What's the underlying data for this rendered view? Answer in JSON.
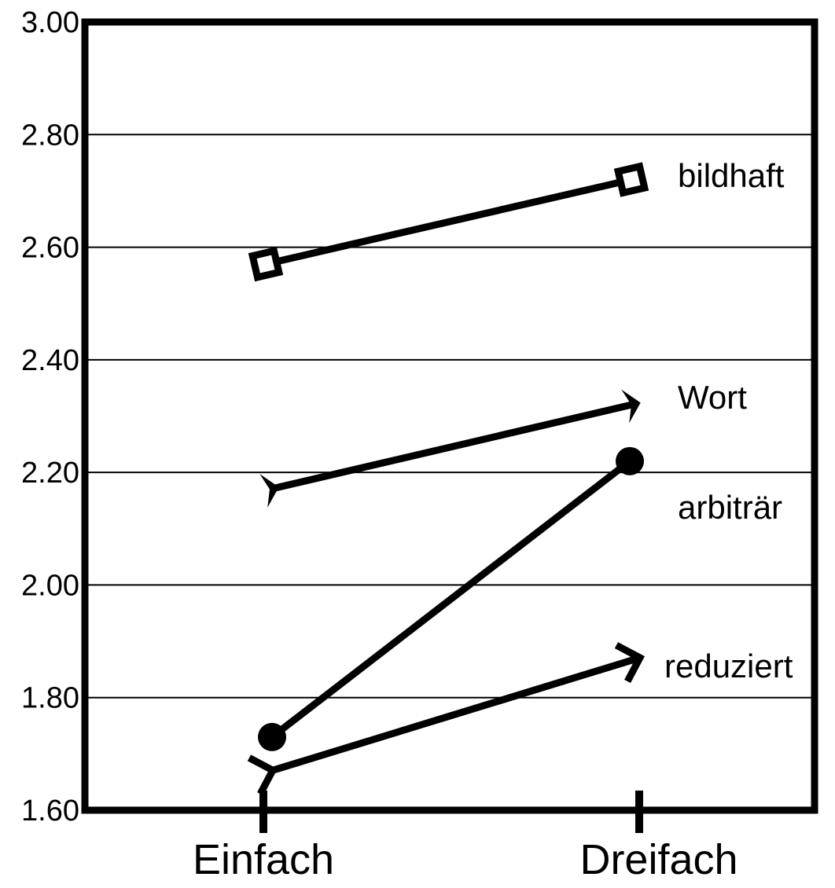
{
  "chart_data": {
    "type": "line",
    "title": "",
    "xlabel": "",
    "ylabel": "",
    "categories": [
      "Einfach",
      "Dreifach"
    ],
    "ylim": [
      1.6,
      3.0
    ],
    "yticks": [
      "1.60",
      "1.80",
      "2.00",
      "2.20",
      "2.40",
      "2.60",
      "2.80",
      "3.00"
    ],
    "ytick_values": [
      1.6,
      1.8,
      2.0,
      2.2,
      2.4,
      2.6,
      2.8,
      3.0
    ],
    "grid": true,
    "series": [
      {
        "name": "bildhaft",
        "marker": "square",
        "values": [
          2.57,
          2.72
        ]
      },
      {
        "name": "Wort",
        "marker": "arrowhead",
        "values": [
          2.17,
          2.32
        ]
      },
      {
        "name": "arbiträr",
        "marker": "circle",
        "values": [
          1.73,
          2.22
        ]
      },
      {
        "name": "reduziert",
        "marker": "chevron",
        "values": [
          1.67,
          1.87
        ]
      }
    ],
    "colors": {
      "line": "#000000",
      "background": "#ffffff"
    }
  }
}
